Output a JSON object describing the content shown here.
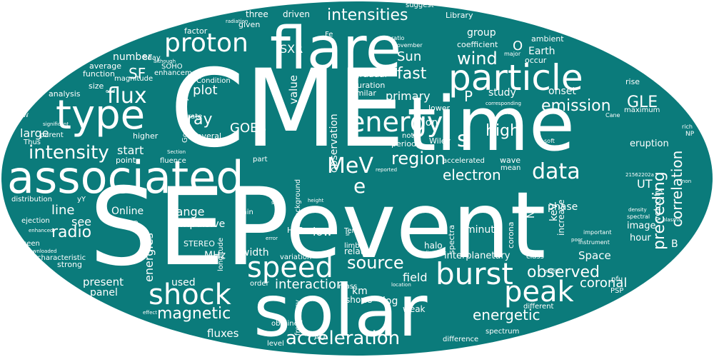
{
  "colors": {
    "background": "#ffffff",
    "ellipse": "#0b7b7b",
    "text": "#ffffff"
  },
  "words": [
    "CME",
    "SEP",
    "event",
    "time",
    "solar",
    "flare",
    "associated",
    "particle",
    "type",
    "burst",
    "energy",
    "speed",
    "proton",
    "shock",
    "peak",
    "MeV",
    "data",
    "flux",
    "intensity",
    "intensities",
    "region",
    "wind",
    "emission",
    "electron",
    "acceleration",
    "source",
    "observed",
    "GLE",
    "radio",
    "magnetic",
    "correlation",
    "preceding",
    "high",
    "energetic",
    "interaction",
    "fast",
    "coronal",
    "Sun",
    "e",
    "s",
    "P",
    "SF",
    "ray",
    "GOES",
    "plot",
    "study",
    "fluxes",
    "field",
    "km",
    "see",
    "line",
    "range",
    "primary",
    "observation",
    "group",
    "O",
    "SXR",
    "low",
    "width",
    "minute",
    "present",
    "energies",
    "start",
    "ion",
    "value",
    "Earth",
    "large",
    "UT",
    "MHz",
    "used",
    "keV",
    "Space",
    "B",
    "N",
    "onset",
    "log",
    "panel",
    "Online",
    "number",
    "impulsive",
    "interplanetary",
    "halo",
    "related",
    "shows",
    "weak",
    "phase",
    "image",
    "hour",
    "velocity",
    "increase",
    "eruption",
    "driven",
    "three",
    "given",
    "factor",
    "suggest",
    "Library",
    "ambient",
    "coefficient",
    "occur",
    "average",
    "function",
    "magnitude",
    "SOHO",
    "size",
    "analysis",
    "gradual",
    "duration",
    "similar",
    "lower",
    "period",
    "Wiley",
    "note",
    "accelerated",
    "wave",
    "mean",
    "fit",
    "rise",
    "maximum",
    "spectra",
    "corona",
    "background",
    "HXR",
    "STEREO",
    "longitude",
    "part",
    "fluence",
    "point",
    "higher",
    "several",
    "Thus",
    "parent",
    "distribution",
    "ejection",
    "seen",
    "characteristic",
    "strong",
    "LASCO",
    "Gopalswamy",
    "rate",
    "Condition",
    "enhancement",
    "8day",
    "variation",
    "limb",
    "Term",
    "class",
    "spectrum",
    "different",
    "difference",
    "AU",
    "level",
    "obtained",
    "frequency",
    "order",
    "mass",
    "PSP",
    "pfu",
    "min",
    "yY",
    "Fe",
    "ratio",
    "November",
    "major",
    "Cane",
    "rich",
    "NP",
    "spectral",
    "instrument",
    "important",
    "soft",
    "corresponding",
    "reported",
    "height",
    "location",
    "indicate",
    "profile",
    "density",
    "plasma",
    "error",
    "poor",
    "although",
    "radiation",
    "Section",
    "significant",
    "enhanced",
    "Downloaded",
    "effect",
    "sr",
    "use",
    "seem",
    "non",
    "W",
    "end",
    "21562202a"
  ]
}
